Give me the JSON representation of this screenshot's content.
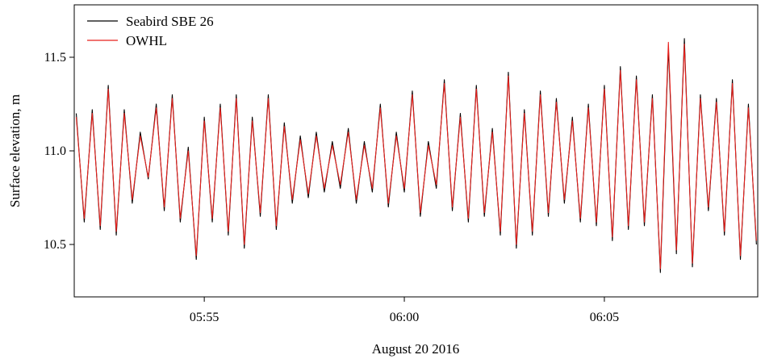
{
  "chart_data": {
    "type": "line",
    "title": "",
    "xlabel": "August 20 2016",
    "ylabel": "Surface elevation, m",
    "x_range": [
      "05:51:45",
      "06:08:50"
    ],
    "ylim": [
      10.22,
      11.78
    ],
    "x_ticks": [
      {
        "time": "05:55:00",
        "label": "05:55"
      },
      {
        "time": "06:00:00",
        "label": "06:00"
      },
      {
        "time": "06:05:00",
        "label": "06:05"
      }
    ],
    "y_ticks": [
      {
        "value": 10.5,
        "label": "10.5"
      },
      {
        "value": 11.0,
        "label": "11.0"
      },
      {
        "value": 11.5,
        "label": "11.5"
      }
    ],
    "grid": false,
    "legend_position": "top-left",
    "series": [
      {
        "name": "Seabird SBE 26",
        "color": "#000000",
        "x": [
          "05:51:48",
          "05:52:00",
          "05:52:12",
          "05:52:24",
          "05:52:36",
          "05:52:48",
          "05:53:00",
          "05:53:12",
          "05:53:24",
          "05:53:36",
          "05:53:48",
          "05:54:00",
          "05:54:12",
          "05:54:24",
          "05:54:36",
          "05:54:48",
          "05:55:00",
          "05:55:12",
          "05:55:24",
          "05:55:36",
          "05:55:48",
          "05:56:00",
          "05:56:12",
          "05:56:24",
          "05:56:36",
          "05:56:48",
          "05:57:00",
          "05:57:12",
          "05:57:24",
          "05:57:36",
          "05:57:48",
          "05:58:00",
          "05:58:12",
          "05:58:24",
          "05:58:36",
          "05:58:48",
          "05:59:00",
          "05:59:12",
          "05:59:24",
          "05:59:36",
          "05:59:48",
          "06:00:00",
          "06:00:12",
          "06:00:24",
          "06:00:36",
          "06:00:48",
          "06:01:00",
          "06:01:12",
          "06:01:24",
          "06:01:36",
          "06:01:48",
          "06:02:00",
          "06:02:12",
          "06:02:24",
          "06:02:36",
          "06:02:48",
          "06:03:00",
          "06:03:12",
          "06:03:24",
          "06:03:36",
          "06:03:48",
          "06:04:00",
          "06:04:12",
          "06:04:24",
          "06:04:36",
          "06:04:48",
          "06:05:00",
          "06:05:12",
          "06:05:24",
          "06:05:36",
          "06:05:48",
          "06:06:00",
          "06:06:12",
          "06:06:24",
          "06:06:36",
          "06:06:48",
          "06:07:00",
          "06:07:12",
          "06:07:24",
          "06:07:36",
          "06:07:48",
          "06:08:00",
          "06:08:12",
          "06:08:24",
          "06:08:36",
          "06:08:48"
        ],
        "values": [
          11.2,
          10.62,
          11.22,
          10.58,
          11.35,
          10.55,
          11.22,
          10.72,
          11.1,
          10.85,
          11.25,
          10.68,
          11.3,
          10.62,
          11.02,
          10.42,
          11.18,
          10.62,
          11.25,
          10.55,
          11.3,
          10.48,
          11.18,
          10.65,
          11.3,
          10.58,
          11.15,
          10.72,
          11.08,
          10.75,
          11.1,
          10.78,
          11.05,
          10.8,
          11.12,
          10.72,
          11.05,
          10.78,
          11.25,
          10.7,
          11.1,
          10.78,
          11.32,
          10.65,
          11.05,
          10.8,
          11.38,
          10.68,
          11.2,
          10.62,
          11.35,
          10.65,
          11.12,
          10.55,
          11.42,
          10.48,
          11.22,
          10.55,
          11.32,
          10.65,
          11.28,
          10.72,
          11.18,
          10.62,
          11.25,
          10.6,
          11.35,
          10.52,
          11.45,
          10.58,
          11.4,
          10.6,
          11.3,
          10.35,
          11.55,
          10.45,
          11.6,
          10.38,
          11.3,
          10.68,
          11.28,
          10.55,
          11.38,
          10.42,
          11.25,
          10.5
        ]
      },
      {
        "name": "OWHL",
        "color": "#e8201c",
        "x": [
          "05:51:48",
          "05:52:00",
          "05:52:12",
          "05:52:24",
          "05:52:36",
          "05:52:48",
          "05:53:00",
          "05:53:12",
          "05:53:24",
          "05:53:36",
          "05:53:48",
          "05:54:00",
          "05:54:12",
          "05:54:24",
          "05:54:36",
          "05:54:48",
          "05:55:00",
          "05:55:12",
          "05:55:24",
          "05:55:36",
          "05:55:48",
          "05:56:00",
          "05:56:12",
          "05:56:24",
          "05:56:36",
          "05:56:48",
          "05:57:00",
          "05:57:12",
          "05:57:24",
          "05:57:36",
          "05:57:48",
          "05:58:00",
          "05:58:12",
          "05:58:24",
          "05:58:36",
          "05:58:48",
          "05:59:00",
          "05:59:12",
          "05:59:24",
          "05:59:36",
          "05:59:48",
          "06:00:00",
          "06:00:12",
          "06:00:24",
          "06:00:36",
          "06:00:48",
          "06:01:00",
          "06:01:12",
          "06:01:24",
          "06:01:36",
          "06:01:48",
          "06:02:00",
          "06:02:12",
          "06:02:24",
          "06:02:36",
          "06:02:48",
          "06:03:00",
          "06:03:12",
          "06:03:24",
          "06:03:36",
          "06:03:48",
          "06:04:00",
          "06:04:12",
          "06:04:24",
          "06:04:36",
          "06:04:48",
          "06:05:00",
          "06:05:12",
          "06:05:24",
          "06:05:36",
          "06:05:48",
          "06:06:00",
          "06:06:12",
          "06:06:24",
          "06:06:36",
          "06:06:48",
          "06:07:00",
          "06:07:12",
          "06:07:24",
          "06:07:36",
          "06:07:48",
          "06:08:00",
          "06:08:12",
          "06:08:24",
          "06:08:36",
          "06:08:48"
        ],
        "values": [
          11.18,
          10.64,
          11.2,
          10.6,
          11.33,
          10.57,
          11.2,
          10.74,
          11.08,
          10.86,
          11.23,
          10.7,
          11.28,
          10.64,
          11.0,
          10.44,
          11.16,
          10.64,
          11.23,
          10.57,
          11.28,
          10.5,
          11.16,
          10.67,
          11.28,
          10.6,
          11.13,
          10.74,
          11.06,
          10.77,
          11.08,
          10.8,
          11.03,
          10.82,
          11.1,
          10.74,
          11.03,
          10.8,
          11.23,
          10.72,
          11.08,
          10.8,
          11.3,
          10.67,
          11.03,
          10.82,
          11.36,
          10.7,
          11.18,
          10.64,
          11.33,
          10.67,
          11.1,
          10.57,
          11.4,
          10.5,
          11.2,
          10.57,
          11.3,
          10.67,
          11.26,
          10.74,
          11.16,
          10.64,
          11.23,
          10.62,
          11.33,
          10.54,
          11.43,
          10.6,
          11.38,
          10.62,
          11.28,
          10.37,
          11.58,
          10.47,
          11.57,
          10.4,
          11.28,
          10.7,
          11.26,
          10.57,
          11.36,
          10.44,
          11.23,
          10.52
        ]
      }
    ]
  }
}
